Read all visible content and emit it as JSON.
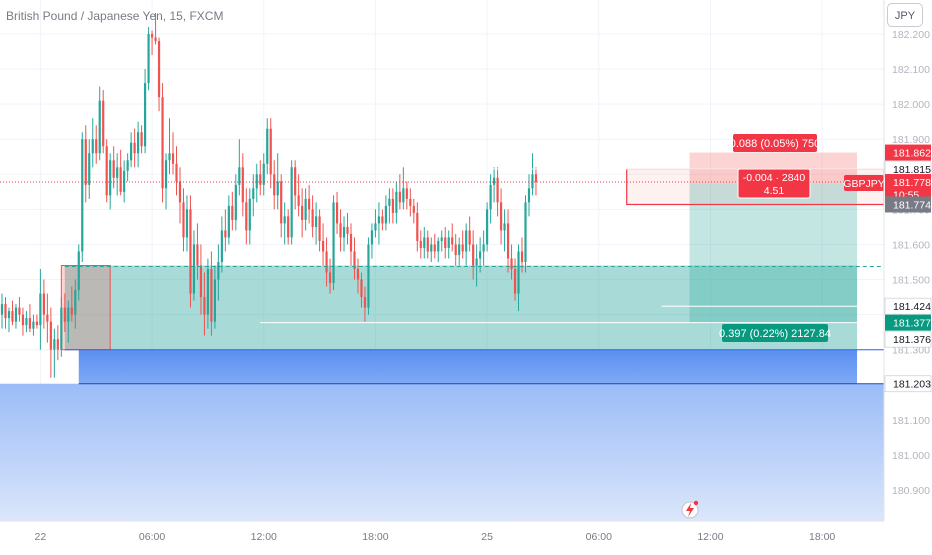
{
  "header": {
    "title": "British Pound / Japanese Yen, 15, FXCM",
    "currency_button": "JPY"
  },
  "chart_data": {
    "type": "candlestick",
    "symbol": "GBPJPY",
    "ylim": [
      180.84,
      182.25
    ],
    "y_ticks": [
      "182.200",
      "182.100",
      "182.000",
      "181.900",
      "181.800",
      "181.700",
      "181.600",
      "181.500",
      "181.400",
      "181.300",
      "181.200",
      "181.100",
      "181.000",
      "180.900"
    ],
    "x_ticks": [
      {
        "label": "22",
        "t": 11
      },
      {
        "label": "06:00",
        "t": 43
      },
      {
        "label": "12:00",
        "t": 75
      },
      {
        "label": "18:00",
        "t": 107
      },
      {
        "label": "25",
        "t": 139
      },
      {
        "label": "06:00",
        "t": 171
      },
      {
        "label": "12:00",
        "t": 203
      },
      {
        "label": "18:00",
        "t": 235
      }
    ],
    "up_color": "#26a69a",
    "down_color": "#ef5350",
    "price_labels": [
      {
        "text": "181.862",
        "price": 181.862,
        "color": "#f23645"
      },
      {
        "text": "181.815",
        "price": 181.815,
        "color": "#ffffff"
      },
      {
        "text": "181.778",
        "price": 181.778,
        "color": "#f23645"
      },
      {
        "text": "10:55",
        "price": 181.743,
        "color": "#f23645"
      },
      {
        "text": "181.774",
        "price": 181.714,
        "color": "#787b86"
      },
      {
        "text": "181.424",
        "price": 181.424,
        "color": "#ffffff"
      },
      {
        "text": "181.377",
        "price": 181.377,
        "color": "#089981"
      },
      {
        "text": "181.376",
        "price": 181.33,
        "color": "#ffffff"
      },
      {
        "text": "181.203",
        "price": 181.203,
        "color": "#ffffff"
      }
    ],
    "symbol_tag": "GBPJPY",
    "last_price": 181.778,
    "annotations": {
      "stop_label": "0.088 (0.05%) 750",
      "target_label": "0.397 (0.22%) 2127.84",
      "pnl_line1": "-0.004 · 2840",
      "pnl_line2": "4.51"
    },
    "zones": {
      "stop": [
        181.774,
        181.862
      ],
      "target": [
        181.377,
        181.774
      ],
      "blue": [
        181.203,
        181.3
      ],
      "left_red": [
        181.3,
        181.54
      ],
      "left_green": [
        181.3,
        181.54
      ]
    },
    "levels": {
      "white_top": 181.815,
      "white_low": 181.424,
      "white_mid": 181.377,
      "dashed": 181.537,
      "blue_bottom": 181.203
    },
    "candles": [
      {
        "o": 181.4,
        "h": 181.46,
        "l": 181.36,
        "c": 181.43
      },
      {
        "o": 181.43,
        "h": 181.45,
        "l": 181.36,
        "c": 181.39
      },
      {
        "o": 181.39,
        "h": 181.42,
        "l": 181.35,
        "c": 181.41
      },
      {
        "o": 181.41,
        "h": 181.44,
        "l": 181.37,
        "c": 181.38
      },
      {
        "o": 181.38,
        "h": 181.43,
        "l": 181.36,
        "c": 181.42
      },
      {
        "o": 181.42,
        "h": 181.45,
        "l": 181.38,
        "c": 181.4
      },
      {
        "o": 181.4,
        "h": 181.42,
        "l": 181.34,
        "c": 181.37
      },
      {
        "o": 181.37,
        "h": 181.41,
        "l": 181.35,
        "c": 181.39
      },
      {
        "o": 181.39,
        "h": 181.43,
        "l": 181.35,
        "c": 181.36
      },
      {
        "o": 181.36,
        "h": 181.4,
        "l": 181.34,
        "c": 181.38
      },
      {
        "o": 181.38,
        "h": 181.4,
        "l": 181.36,
        "c": 181.37
      },
      {
        "o": 181.37,
        "h": 181.53,
        "l": 181.3,
        "c": 181.46
      },
      {
        "o": 181.46,
        "h": 181.5,
        "l": 181.36,
        "c": 181.4
      },
      {
        "o": 181.4,
        "h": 181.46,
        "l": 181.32,
        "c": 181.38
      },
      {
        "o": 181.38,
        "h": 181.42,
        "l": 181.22,
        "c": 181.3
      },
      {
        "o": 181.3,
        "h": 181.36,
        "l": 181.22,
        "c": 181.33
      },
      {
        "o": 181.33,
        "h": 181.37,
        "l": 181.27,
        "c": 181.3
      },
      {
        "o": 181.3,
        "h": 181.45,
        "l": 181.28,
        "c": 181.42
      },
      {
        "o": 181.42,
        "h": 181.46,
        "l": 181.35,
        "c": 181.38
      },
      {
        "o": 181.38,
        "h": 181.44,
        "l": 181.32,
        "c": 181.42
      },
      {
        "o": 181.42,
        "h": 181.48,
        "l": 181.38,
        "c": 181.4
      },
      {
        "o": 181.4,
        "h": 181.5,
        "l": 181.36,
        "c": 181.47
      },
      {
        "o": 181.47,
        "h": 181.6,
        "l": 181.44,
        "c": 181.58
      },
      {
        "o": 181.58,
        "h": 181.92,
        "l": 181.55,
        "c": 181.9
      },
      {
        "o": 181.9,
        "h": 181.94,
        "l": 181.72,
        "c": 181.77
      },
      {
        "o": 181.77,
        "h": 181.9,
        "l": 181.73,
        "c": 181.86
      },
      {
        "o": 181.86,
        "h": 181.96,
        "l": 181.82,
        "c": 181.9
      },
      {
        "o": 181.9,
        "h": 181.94,
        "l": 181.83,
        "c": 181.86
      },
      {
        "o": 181.86,
        "h": 182.05,
        "l": 181.84,
        "c": 182.01
      },
      {
        "o": 182.01,
        "h": 182.04,
        "l": 181.86,
        "c": 181.88
      },
      {
        "o": 181.88,
        "h": 181.9,
        "l": 181.72,
        "c": 181.74
      },
      {
        "o": 181.74,
        "h": 181.86,
        "l": 181.7,
        "c": 181.84
      },
      {
        "o": 181.84,
        "h": 181.88,
        "l": 181.76,
        "c": 181.79
      },
      {
        "o": 181.79,
        "h": 181.86,
        "l": 181.74,
        "c": 181.82
      },
      {
        "o": 181.82,
        "h": 181.87,
        "l": 181.74,
        "c": 181.75
      },
      {
        "o": 181.75,
        "h": 181.84,
        "l": 181.72,
        "c": 181.81
      },
      {
        "o": 181.81,
        "h": 181.86,
        "l": 181.78,
        "c": 181.84
      },
      {
        "o": 181.84,
        "h": 181.92,
        "l": 181.82,
        "c": 181.89
      },
      {
        "o": 181.89,
        "h": 181.93,
        "l": 181.82,
        "c": 181.86
      },
      {
        "o": 181.86,
        "h": 181.95,
        "l": 181.82,
        "c": 181.92
      },
      {
        "o": 181.92,
        "h": 181.94,
        "l": 181.86,
        "c": 181.88
      },
      {
        "o": 181.88,
        "h": 182.1,
        "l": 181.86,
        "c": 182.06
      },
      {
        "o": 182.06,
        "h": 182.22,
        "l": 182.04,
        "c": 182.2
      },
      {
        "o": 182.2,
        "h": 182.21,
        "l": 182.14,
        "c": 182.19
      },
      {
        "o": 182.19,
        "h": 182.26,
        "l": 182.17,
        "c": 182.18
      },
      {
        "o": 182.18,
        "h": 182.19,
        "l": 181.98,
        "c": 182.02
      },
      {
        "o": 182.02,
        "h": 182.06,
        "l": 181.72,
        "c": 181.76
      },
      {
        "o": 181.76,
        "h": 181.86,
        "l": 181.7,
        "c": 181.84
      },
      {
        "o": 181.84,
        "h": 181.96,
        "l": 181.8,
        "c": 181.86
      },
      {
        "o": 181.86,
        "h": 181.92,
        "l": 181.8,
        "c": 181.83
      },
      {
        "o": 181.83,
        "h": 181.88,
        "l": 181.74,
        "c": 181.78
      },
      {
        "o": 181.78,
        "h": 181.82,
        "l": 181.66,
        "c": 181.72
      },
      {
        "o": 181.72,
        "h": 181.76,
        "l": 181.58,
        "c": 181.62
      },
      {
        "o": 181.62,
        "h": 181.74,
        "l": 181.58,
        "c": 181.7
      },
      {
        "o": 181.7,
        "h": 181.74,
        "l": 181.42,
        "c": 181.46
      },
      {
        "o": 181.46,
        "h": 181.64,
        "l": 181.44,
        "c": 181.6
      },
      {
        "o": 181.6,
        "h": 181.66,
        "l": 181.5,
        "c": 181.54
      },
      {
        "o": 181.54,
        "h": 181.6,
        "l": 181.4,
        "c": 181.45
      },
      {
        "o": 181.45,
        "h": 181.52,
        "l": 181.34,
        "c": 181.4
      },
      {
        "o": 181.4,
        "h": 181.56,
        "l": 181.36,
        "c": 181.53
      },
      {
        "o": 181.53,
        "h": 181.58,
        "l": 181.34,
        "c": 181.38
      },
      {
        "o": 181.38,
        "h": 181.54,
        "l": 181.36,
        "c": 181.5
      },
      {
        "o": 181.5,
        "h": 181.6,
        "l": 181.44,
        "c": 181.55
      },
      {
        "o": 181.55,
        "h": 181.68,
        "l": 181.52,
        "c": 181.64
      },
      {
        "o": 181.64,
        "h": 181.7,
        "l": 181.58,
        "c": 181.62
      },
      {
        "o": 181.62,
        "h": 181.74,
        "l": 181.6,
        "c": 181.71
      },
      {
        "o": 181.71,
        "h": 181.75,
        "l": 181.64,
        "c": 181.67
      },
      {
        "o": 181.67,
        "h": 181.8,
        "l": 181.64,
        "c": 181.77
      },
      {
        "o": 181.77,
        "h": 181.9,
        "l": 181.74,
        "c": 181.82
      },
      {
        "o": 181.82,
        "h": 181.86,
        "l": 181.68,
        "c": 181.72
      },
      {
        "o": 181.72,
        "h": 181.76,
        "l": 181.6,
        "c": 181.64
      },
      {
        "o": 181.64,
        "h": 181.76,
        "l": 181.6,
        "c": 181.73
      },
      {
        "o": 181.73,
        "h": 181.8,
        "l": 181.68,
        "c": 181.76
      },
      {
        "o": 181.76,
        "h": 181.83,
        "l": 181.72,
        "c": 181.8
      },
      {
        "o": 181.8,
        "h": 181.84,
        "l": 181.74,
        "c": 181.77
      },
      {
        "o": 181.77,
        "h": 181.86,
        "l": 181.74,
        "c": 181.83
      },
      {
        "o": 181.83,
        "h": 181.96,
        "l": 181.8,
        "c": 181.93
      },
      {
        "o": 181.93,
        "h": 181.96,
        "l": 181.76,
        "c": 181.8
      },
      {
        "o": 181.8,
        "h": 181.84,
        "l": 181.7,
        "c": 181.74
      },
      {
        "o": 181.74,
        "h": 181.86,
        "l": 181.7,
        "c": 181.78
      },
      {
        "o": 181.78,
        "h": 181.8,
        "l": 181.62,
        "c": 181.66
      },
      {
        "o": 181.66,
        "h": 181.72,
        "l": 181.6,
        "c": 181.68
      },
      {
        "o": 181.68,
        "h": 181.7,
        "l": 181.6,
        "c": 181.62
      },
      {
        "o": 181.62,
        "h": 181.84,
        "l": 181.6,
        "c": 181.82
      },
      {
        "o": 181.82,
        "h": 181.84,
        "l": 181.7,
        "c": 181.74
      },
      {
        "o": 181.74,
        "h": 181.8,
        "l": 181.68,
        "c": 181.71
      },
      {
        "o": 181.71,
        "h": 181.76,
        "l": 181.62,
        "c": 181.67
      },
      {
        "o": 181.67,
        "h": 181.76,
        "l": 181.64,
        "c": 181.73
      },
      {
        "o": 181.73,
        "h": 181.77,
        "l": 181.66,
        "c": 181.7
      },
      {
        "o": 181.7,
        "h": 181.74,
        "l": 181.62,
        "c": 181.65
      },
      {
        "o": 181.65,
        "h": 181.72,
        "l": 181.6,
        "c": 181.68
      },
      {
        "o": 181.68,
        "h": 181.7,
        "l": 181.58,
        "c": 181.61
      },
      {
        "o": 181.61,
        "h": 181.66,
        "l": 181.54,
        "c": 181.58
      },
      {
        "o": 181.58,
        "h": 181.62,
        "l": 181.48,
        "c": 181.52
      },
      {
        "o": 181.52,
        "h": 181.56,
        "l": 181.46,
        "c": 181.49
      },
      {
        "o": 181.49,
        "h": 181.74,
        "l": 181.47,
        "c": 181.72
      },
      {
        "o": 181.72,
        "h": 181.75,
        "l": 181.63,
        "c": 181.66
      },
      {
        "o": 181.66,
        "h": 181.7,
        "l": 181.58,
        "c": 181.62
      },
      {
        "o": 181.62,
        "h": 181.68,
        "l": 181.58,
        "c": 181.65
      },
      {
        "o": 181.65,
        "h": 181.69,
        "l": 181.6,
        "c": 181.63
      },
      {
        "o": 181.63,
        "h": 181.66,
        "l": 181.54,
        "c": 181.58
      },
      {
        "o": 181.58,
        "h": 181.62,
        "l": 181.5,
        "c": 181.53
      },
      {
        "o": 181.53,
        "h": 181.56,
        "l": 181.46,
        "c": 181.5
      },
      {
        "o": 181.5,
        "h": 181.52,
        "l": 181.42,
        "c": 181.45
      },
      {
        "o": 181.45,
        "h": 181.48,
        "l": 181.38,
        "c": 181.42
      },
      {
        "o": 181.42,
        "h": 181.62,
        "l": 181.4,
        "c": 181.6
      },
      {
        "o": 181.6,
        "h": 181.66,
        "l": 181.56,
        "c": 181.64
      },
      {
        "o": 181.64,
        "h": 181.7,
        "l": 181.62,
        "c": 181.66
      },
      {
        "o": 181.66,
        "h": 181.72,
        "l": 181.6,
        "c": 181.68
      },
      {
        "o": 181.68,
        "h": 181.7,
        "l": 181.64,
        "c": 181.66
      },
      {
        "o": 181.66,
        "h": 181.74,
        "l": 181.64,
        "c": 181.71
      },
      {
        "o": 181.71,
        "h": 181.76,
        "l": 181.66,
        "c": 181.73
      },
      {
        "o": 181.73,
        "h": 181.76,
        "l": 181.66,
        "c": 181.69
      },
      {
        "o": 181.69,
        "h": 181.78,
        "l": 181.66,
        "c": 181.75
      },
      {
        "o": 181.75,
        "h": 181.8,
        "l": 181.7,
        "c": 181.72
      },
      {
        "o": 181.72,
        "h": 181.82,
        "l": 181.7,
        "c": 181.76
      },
      {
        "o": 181.76,
        "h": 181.78,
        "l": 181.7,
        "c": 181.73
      },
      {
        "o": 181.73,
        "h": 181.76,
        "l": 181.68,
        "c": 181.71
      },
      {
        "o": 181.71,
        "h": 181.73,
        "l": 181.66,
        "c": 181.69
      },
      {
        "o": 181.69,
        "h": 181.72,
        "l": 181.58,
        "c": 181.61
      },
      {
        "o": 181.61,
        "h": 181.64,
        "l": 181.56,
        "c": 181.59
      },
      {
        "o": 181.59,
        "h": 181.65,
        "l": 181.56,
        "c": 181.62
      },
      {
        "o": 181.62,
        "h": 181.64,
        "l": 181.56,
        "c": 181.58
      },
      {
        "o": 181.58,
        "h": 181.62,
        "l": 181.55,
        "c": 181.6
      },
      {
        "o": 181.6,
        "h": 181.63,
        "l": 181.56,
        "c": 181.58
      },
      {
        "o": 181.58,
        "h": 181.62,
        "l": 181.55,
        "c": 181.61
      },
      {
        "o": 181.61,
        "h": 181.64,
        "l": 181.58,
        "c": 181.62
      },
      {
        "o": 181.62,
        "h": 181.65,
        "l": 181.56,
        "c": 181.59
      },
      {
        "o": 181.59,
        "h": 181.64,
        "l": 181.56,
        "c": 181.62
      },
      {
        "o": 181.62,
        "h": 181.66,
        "l": 181.58,
        "c": 181.6
      },
      {
        "o": 181.6,
        "h": 181.63,
        "l": 181.54,
        "c": 181.57
      },
      {
        "o": 181.57,
        "h": 181.62,
        "l": 181.54,
        "c": 181.6
      },
      {
        "o": 181.6,
        "h": 181.64,
        "l": 181.56,
        "c": 181.58
      },
      {
        "o": 181.58,
        "h": 181.66,
        "l": 181.54,
        "c": 181.64
      },
      {
        "o": 181.64,
        "h": 181.68,
        "l": 181.58,
        "c": 181.6
      },
      {
        "o": 181.6,
        "h": 181.64,
        "l": 181.5,
        "c": 181.54
      },
      {
        "o": 181.54,
        "h": 181.6,
        "l": 181.48,
        "c": 181.56
      },
      {
        "o": 181.56,
        "h": 181.62,
        "l": 181.52,
        "c": 181.58
      },
      {
        "o": 181.58,
        "h": 181.64,
        "l": 181.54,
        "c": 181.6
      },
      {
        "o": 181.6,
        "h": 181.72,
        "l": 181.58,
        "c": 181.7
      },
      {
        "o": 181.7,
        "h": 181.8,
        "l": 181.66,
        "c": 181.77
      },
      {
        "o": 181.77,
        "h": 181.82,
        "l": 181.72,
        "c": 181.79
      },
      {
        "o": 181.79,
        "h": 181.82,
        "l": 181.68,
        "c": 181.72
      },
      {
        "o": 181.72,
        "h": 181.76,
        "l": 181.6,
        "c": 181.64
      },
      {
        "o": 181.64,
        "h": 181.7,
        "l": 181.58,
        "c": 181.66
      },
      {
        "o": 181.66,
        "h": 181.7,
        "l": 181.52,
        "c": 181.56
      },
      {
        "o": 181.56,
        "h": 181.6,
        "l": 181.5,
        "c": 181.53
      },
      {
        "o": 181.53,
        "h": 181.56,
        "l": 181.44,
        "c": 181.46
      },
      {
        "o": 181.46,
        "h": 181.6,
        "l": 181.41,
        "c": 181.58
      },
      {
        "o": 181.58,
        "h": 181.62,
        "l": 181.52,
        "c": 181.55
      },
      {
        "o": 181.55,
        "h": 181.74,
        "l": 181.52,
        "c": 181.72
      },
      {
        "o": 181.72,
        "h": 181.8,
        "l": 181.68,
        "c": 181.76
      },
      {
        "o": 181.76,
        "h": 181.86,
        "l": 181.74,
        "c": 181.8
      },
      {
        "o": 181.8,
        "h": 181.82,
        "l": 181.74,
        "c": 181.778
      }
    ]
  }
}
